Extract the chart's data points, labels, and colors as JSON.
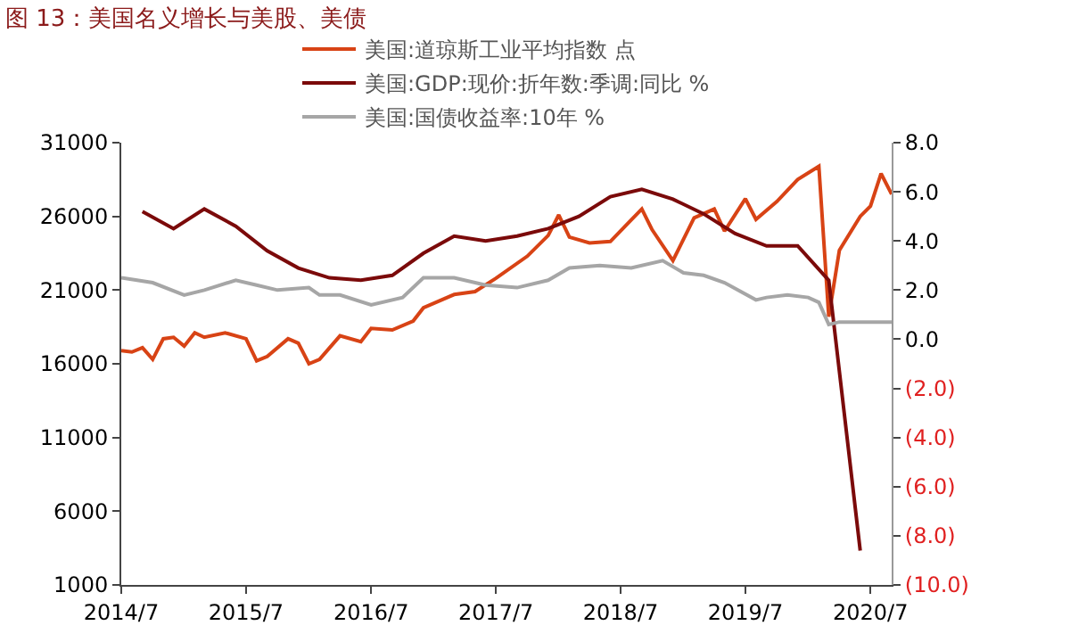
{
  "chart_data": {
    "type": "line",
    "title": "图 13：美国名义增长与美股、美债",
    "legend": "top",
    "grid": false,
    "marker": "none",
    "line_style": "solid",
    "xlim": [
      "2014-07",
      "2020-09"
    ],
    "xticks": [
      {
        "value": "2014-07",
        "label": "2014/7"
      },
      {
        "value": "2015-07",
        "label": "2015/7"
      },
      {
        "value": "2016-07",
        "label": "2016/7"
      },
      {
        "value": "2017-07",
        "label": "2017/7"
      },
      {
        "value": "2018-07",
        "label": "2018/7"
      },
      {
        "value": "2019-07",
        "label": "2019/7"
      },
      {
        "value": "2020-07",
        "label": "2020/7"
      }
    ],
    "ylim": [
      1000,
      31000
    ],
    "yticks": [
      1000,
      6000,
      11000,
      16000,
      21000,
      26000,
      31000
    ],
    "y2lim": [
      -10,
      8
    ],
    "y2ticks": [
      {
        "value": -10,
        "label": "(10.0)"
      },
      {
        "value": -8,
        "label": "(8.0)"
      },
      {
        "value": -6,
        "label": "(6.0)"
      },
      {
        "value": -4,
        "label": "(4.0)"
      },
      {
        "value": -2,
        "label": "(2.0)"
      },
      {
        "value": 0,
        "label": "0.0"
      },
      {
        "value": 2,
        "label": "2.0"
      },
      {
        "value": 4,
        "label": "4.0"
      },
      {
        "value": 6,
        "label": "6.0"
      },
      {
        "value": 8,
        "label": "8.0"
      }
    ],
    "series": [
      {
        "name": "美国:道琼斯工业平均指数 点",
        "color": "#d84315",
        "x": [
          "2014-07",
          "2014-08",
          "2014-09",
          "2014-10",
          "2014-11",
          "2014-12",
          "2015-01",
          "2015-02",
          "2015-03",
          "2015-05",
          "2015-07",
          "2015-08",
          "2015-09",
          "2015-11",
          "2015-12",
          "2016-01",
          "2016-02",
          "2016-04",
          "2016-06",
          "2016-07",
          "2016-09",
          "2016-11",
          "2016-12",
          "2017-03",
          "2017-05",
          "2017-07",
          "2017-10",
          "2017-12",
          "2018-01",
          "2018-02",
          "2018-04",
          "2018-06",
          "2018-09",
          "2018-10",
          "2018-12",
          "2019-02",
          "2019-04",
          "2019-05",
          "2019-07",
          "2019-08",
          "2019-10",
          "2019-12",
          "2020-02",
          "2020-03",
          "2020-04",
          "2020-06",
          "2020-07",
          "2020-08",
          "2020-09"
        ],
        "values": [
          16900,
          16800,
          17100,
          16300,
          17700,
          17800,
          17200,
          18100,
          17800,
          18100,
          17700,
          16200,
          16500,
          17700,
          17400,
          16000,
          16300,
          17900,
          17500,
          18400,
          18300,
          18900,
          19800,
          20700,
          20900,
          21800,
          23300,
          24700,
          26100,
          24600,
          24200,
          24300,
          26500,
          25100,
          23000,
          25900,
          26500,
          25000,
          27200,
          25800,
          27000,
          28500,
          29400,
          19200,
          23700,
          26000,
          26700,
          28900,
          27500
        ]
      },
      {
        "name": "美国:GDP:现价:折年数:季调:同比 %",
        "color": "#7b0a0a",
        "axis": "y2",
        "x": [
          "2014-09",
          "2014-12",
          "2015-03",
          "2015-06",
          "2015-09",
          "2015-12",
          "2016-03",
          "2016-06",
          "2016-09",
          "2016-12",
          "2017-03",
          "2017-06",
          "2017-09",
          "2017-12",
          "2018-03",
          "2018-06",
          "2018-09",
          "2018-12",
          "2019-03",
          "2019-06",
          "2019-09",
          "2019-12",
          "2020-03",
          "2020-06"
        ],
        "values": [
          5.2,
          4.5,
          5.3,
          4.6,
          3.6,
          2.9,
          2.5,
          2.4,
          2.6,
          3.5,
          4.2,
          4.0,
          4.2,
          4.5,
          5.0,
          5.8,
          6.1,
          5.7,
          5.1,
          4.3,
          3.8,
          3.8,
          2.4,
          -8.6
        ]
      },
      {
        "name": "美国:国债收益率:10年 %",
        "color": "#a6a6a6",
        "axis": "y2",
        "x": [
          "2014-07",
          "2014-10",
          "2015-01",
          "2015-03",
          "2015-06",
          "2015-08",
          "2015-10",
          "2016-01",
          "2016-02",
          "2016-04",
          "2016-07",
          "2016-10",
          "2016-12",
          "2017-03",
          "2017-06",
          "2017-09",
          "2017-12",
          "2018-02",
          "2018-05",
          "2018-08",
          "2018-11",
          "2019-01",
          "2019-03",
          "2019-05",
          "2019-08",
          "2019-09",
          "2019-11",
          "2020-01",
          "2020-02",
          "2020-03",
          "2020-04",
          "2020-06",
          "2020-09"
        ],
        "values": [
          2.5,
          2.3,
          1.8,
          2.0,
          2.4,
          2.2,
          2.0,
          2.1,
          1.8,
          1.8,
          1.4,
          1.7,
          2.5,
          2.5,
          2.2,
          2.1,
          2.4,
          2.9,
          3.0,
          2.9,
          3.2,
          2.7,
          2.6,
          2.3,
          1.6,
          1.7,
          1.8,
          1.7,
          1.5,
          0.6,
          0.7,
          0.7,
          0.7
        ]
      }
    ]
  }
}
